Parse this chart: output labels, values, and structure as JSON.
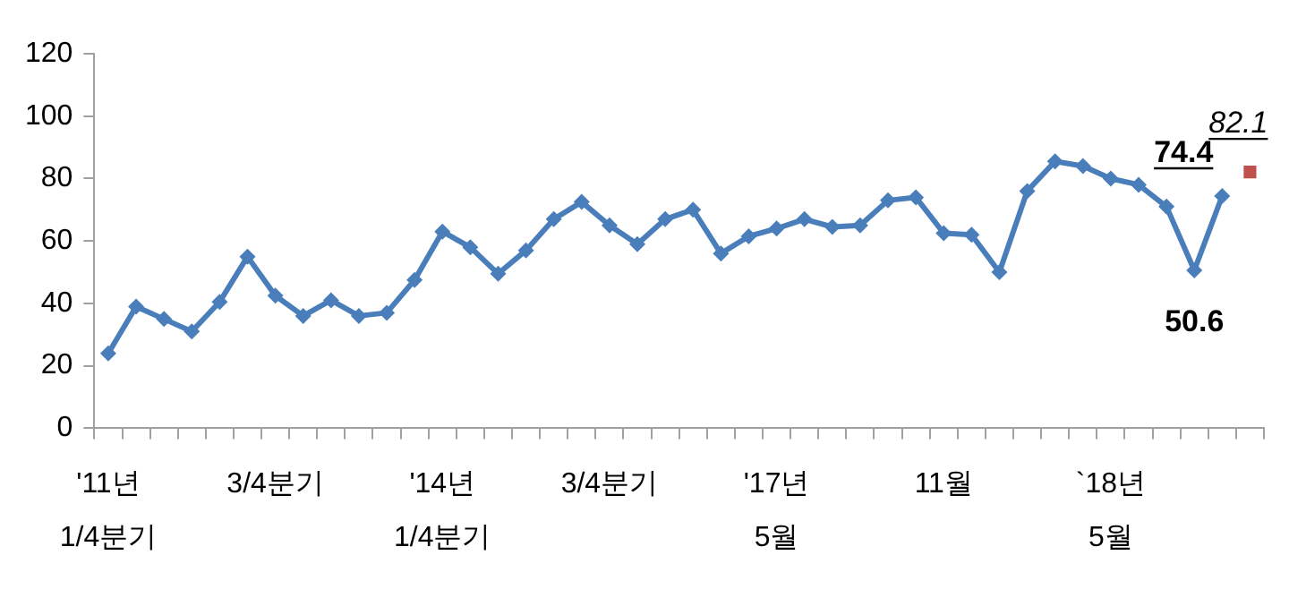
{
  "chart_data": {
    "type": "line",
    "categories": [
      "'11년\n1/4분기",
      null,
      null,
      null,
      null,
      null,
      "3/4분기",
      null,
      null,
      null,
      null,
      null,
      "'14년\n1/4분기",
      null,
      null,
      null,
      null,
      null,
      "3/4분기",
      null,
      null,
      null,
      null,
      null,
      "'17년\n5월",
      null,
      null,
      null,
      null,
      null,
      "11월",
      null,
      null,
      null,
      null,
      null,
      "`18년\n5월",
      null,
      null,
      null,
      null,
      null
    ],
    "series": [
      {
        "color": "#4a7ebb",
        "marker": "diamond",
        "values": [
          24,
          39,
          35,
          31,
          40.5,
          55,
          42.5,
          36,
          41,
          36,
          37,
          47.5,
          63,
          58,
          49.5,
          57,
          67,
          72.5,
          65,
          59,
          67,
          70,
          56,
          61.5,
          64,
          67,
          64.5,
          65,
          73,
          74,
          62.5,
          62,
          50,
          76,
          85.5,
          84,
          80,
          78,
          71,
          50.6,
          74.4,
          null
        ],
        "value_labels": [
          null,
          null,
          null,
          null,
          null,
          null,
          null,
          null,
          null,
          null,
          null,
          null,
          null,
          null,
          null,
          null,
          null,
          null,
          null,
          null,
          null,
          null,
          null,
          null,
          null,
          null,
          null,
          null,
          null,
          null,
          null,
          null,
          null,
          null,
          null,
          null,
          null,
          null,
          null,
          "50.6",
          "74.4",
          null
        ]
      },
      {
        "color": "#c0504d",
        "marker": "square",
        "values": [
          null,
          null,
          null,
          null,
          null,
          null,
          null,
          null,
          null,
          null,
          null,
          null,
          null,
          null,
          null,
          null,
          null,
          null,
          null,
          null,
          null,
          null,
          null,
          null,
          null,
          null,
          null,
          null,
          null,
          null,
          null,
          null,
          null,
          null,
          null,
          null,
          null,
          null,
          null,
          null,
          null,
          82.1
        ],
        "value_labels": [
          null,
          null,
          null,
          null,
          null,
          null,
          null,
          null,
          null,
          null,
          null,
          null,
          null,
          null,
          null,
          null,
          null,
          null,
          null,
          null,
          null,
          null,
          null,
          null,
          null,
          null,
          null,
          null,
          null,
          null,
          null,
          null,
          null,
          null,
          null,
          null,
          null,
          null,
          null,
          null,
          null,
          "82.1"
        ]
      }
    ],
    "ylim": [
      0,
      120
    ],
    "yticks": [
      0,
      20,
      40,
      60,
      80,
      100,
      120
    ],
    "grid": false,
    "legend": false,
    "line_style": "solid"
  }
}
